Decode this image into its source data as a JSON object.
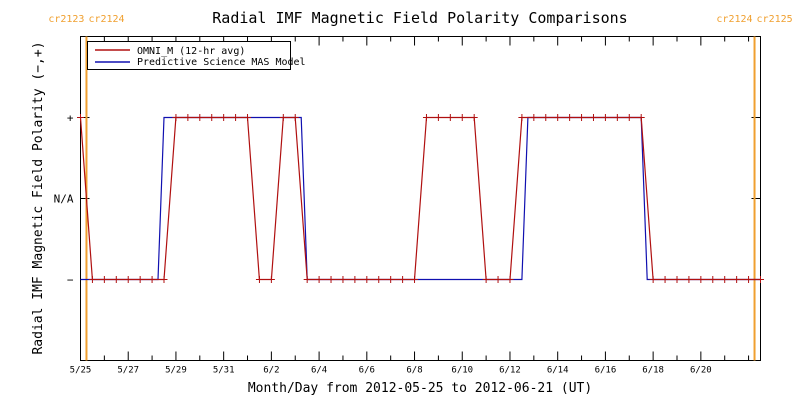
{
  "chart_data": {
    "type": "line",
    "title": "Radial IMF Magnetic Field Polarity Comparisons",
    "xlabel": "Month/Day from 2012-05-25 to 2012-06-21 (UT)",
    "ylabel": "Radial IMF Magnetic Field Polarity (−,+)",
    "x_unit": "day",
    "xlim": [
      "2012-05-25",
      "2012-06-22 12:00"
    ],
    "x_tick_labels": [
      "5/25",
      "5/27",
      "5/29",
      "5/31",
      "6/2",
      "6/4",
      "6/6",
      "6/8",
      "6/10",
      "6/12",
      "6/14",
      "6/16",
      "6/18",
      "6/20"
    ],
    "x_tick_dates": [
      "2012-05-25",
      "2012-05-27",
      "2012-05-29",
      "2012-05-31",
      "2012-06-02",
      "2012-06-04",
      "2012-06-06",
      "2012-06-08",
      "2012-06-10",
      "2012-06-12",
      "2012-06-14",
      "2012-06-16",
      "2012-06-18",
      "2012-06-20"
    ],
    "y_tick_labels": [
      "−",
      "N/A",
      "+"
    ],
    "y_tick_values": [
      -1,
      0,
      1
    ],
    "ylim": [
      -2,
      2
    ],
    "legend_position": "top-left",
    "grid": false,
    "carrington_markers": [
      {
        "date": "2012-05-25 06:00",
        "left_label": "cr2123",
        "right_label": "cr2124",
        "color": "#f0a030"
      },
      {
        "date": "2012-06-22 06:00",
        "left_label": "cr2124",
        "right_label": "cr2125",
        "color": "#f0a030"
      }
    ],
    "series": [
      {
        "name": "OMNI_M (12-hr avg)",
        "color": "#b01010",
        "marker": "plus",
        "points": [
          [
            "2012-05-25 00:00",
            1
          ],
          [
            "2012-05-25 12:00",
            -1
          ],
          [
            "2012-05-26 00:00",
            -1
          ],
          [
            "2012-05-26 12:00",
            -1
          ],
          [
            "2012-05-27 00:00",
            -1
          ],
          [
            "2012-05-27 12:00",
            -1
          ],
          [
            "2012-05-28 00:00",
            -1
          ],
          [
            "2012-05-28 12:00",
            -1
          ],
          [
            "2012-05-29 00:00",
            1
          ],
          [
            "2012-05-29 12:00",
            1
          ],
          [
            "2012-05-30 00:00",
            1
          ],
          [
            "2012-05-30 12:00",
            1
          ],
          [
            "2012-05-31 00:00",
            1
          ],
          [
            "2012-05-31 12:00",
            1
          ],
          [
            "2012-06-01 00:00",
            1
          ],
          [
            "2012-06-01 12:00",
            -1
          ],
          [
            "2012-06-02 00:00",
            -1
          ],
          [
            "2012-06-02 12:00",
            1
          ],
          [
            "2012-06-03 00:00",
            1
          ],
          [
            "2012-06-03 12:00",
            -1
          ],
          [
            "2012-06-04 00:00",
            -1
          ],
          [
            "2012-06-04 12:00",
            -1
          ],
          [
            "2012-06-05 00:00",
            -1
          ],
          [
            "2012-06-05 12:00",
            -1
          ],
          [
            "2012-06-06 00:00",
            -1
          ],
          [
            "2012-06-06 12:00",
            -1
          ],
          [
            "2012-06-07 00:00",
            -1
          ],
          [
            "2012-06-07 12:00",
            -1
          ],
          [
            "2012-06-08 00:00",
            -1
          ],
          [
            "2012-06-08 12:00",
            1
          ],
          [
            "2012-06-09 00:00",
            1
          ],
          [
            "2012-06-09 12:00",
            1
          ],
          [
            "2012-06-10 00:00",
            1
          ],
          [
            "2012-06-10 12:00",
            1
          ],
          [
            "2012-06-11 00:00",
            -1
          ],
          [
            "2012-06-11 12:00",
            -1
          ],
          [
            "2012-06-12 00:00",
            -1
          ],
          [
            "2012-06-12 12:00",
            1
          ],
          [
            "2012-06-13 00:00",
            1
          ],
          [
            "2012-06-13 12:00",
            1
          ],
          [
            "2012-06-14 00:00",
            1
          ],
          [
            "2012-06-14 12:00",
            1
          ],
          [
            "2012-06-15 00:00",
            1
          ],
          [
            "2012-06-15 12:00",
            1
          ],
          [
            "2012-06-16 00:00",
            1
          ],
          [
            "2012-06-16 12:00",
            1
          ],
          [
            "2012-06-17 00:00",
            1
          ],
          [
            "2012-06-17 12:00",
            1
          ],
          [
            "2012-06-18 00:00",
            -1
          ],
          [
            "2012-06-18 12:00",
            -1
          ],
          [
            "2012-06-19 00:00",
            -1
          ],
          [
            "2012-06-19 12:00",
            -1
          ],
          [
            "2012-06-20 00:00",
            -1
          ],
          [
            "2012-06-20 12:00",
            -1
          ],
          [
            "2012-06-21 00:00",
            -1
          ],
          [
            "2012-06-21 12:00",
            -1
          ],
          [
            "2012-06-22 00:00",
            -1
          ],
          [
            "2012-06-22 12:00",
            -1
          ]
        ]
      },
      {
        "name": "Predictive Science MAS Model",
        "color": "#1010b0",
        "marker": "none",
        "points": [
          [
            "2012-05-25 00:00",
            -1
          ],
          [
            "2012-05-28 06:00",
            -1
          ],
          [
            "2012-05-28 12:00",
            1
          ],
          [
            "2012-06-03 06:00",
            1
          ],
          [
            "2012-06-03 12:00",
            -1
          ],
          [
            "2012-06-12 12:00",
            -1
          ],
          [
            "2012-06-12 18:00",
            1
          ],
          [
            "2012-06-17 12:00",
            1
          ],
          [
            "2012-06-17 18:00",
            -1
          ],
          [
            "2012-06-22 12:00",
            -1
          ]
        ]
      }
    ]
  }
}
